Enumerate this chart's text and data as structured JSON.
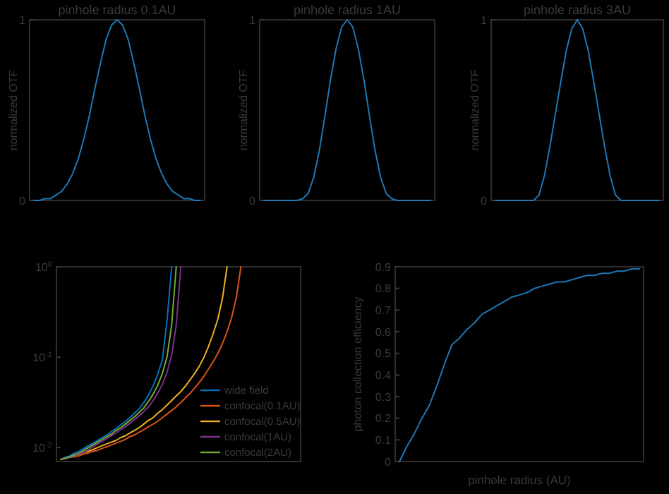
{
  "chart_data": [
    {
      "type": "line",
      "title": "pinhole radius 0.1AU",
      "ylabel": "normalized OTF",
      "tick_labels": "y",
      "ylim": [
        0,
        1
      ],
      "yticks": [
        0,
        1
      ],
      "categories": [
        null,
        null,
        null,
        null,
        null,
        null,
        null,
        null,
        null,
        null,
        null,
        null,
        null,
        null,
        null,
        null,
        null,
        null,
        null,
        null,
        null,
        null,
        null,
        null,
        null,
        null,
        null,
        null,
        null,
        null,
        null
      ],
      "series": [
        {
          "color": "#1f77b4",
          "values": [
            0,
            0,
            0.01,
            0.01,
            0.03,
            0.05,
            0.09,
            0.15,
            0.23,
            0.34,
            0.47,
            0.62,
            0.76,
            0.89,
            0.97,
            1,
            0.97,
            0.89,
            0.76,
            0.62,
            0.47,
            0.34,
            0.23,
            0.15,
            0.09,
            0.05,
            0.03,
            0.01,
            0.01,
            0,
            0
          ]
        }
      ]
    },
    {
      "type": "line",
      "title": "pinhole radius 1AU",
      "ylabel": "normalized OTF",
      "tick_labels": "y",
      "ylim": [
        0,
        1
      ],
      "yticks": [
        0,
        1
      ],
      "categories": [
        null,
        null,
        null,
        null,
        null,
        null,
        null,
        null,
        null,
        null,
        null,
        null,
        null,
        null,
        null,
        null,
        null,
        null,
        null,
        null,
        null,
        null,
        null,
        null,
        null,
        null,
        null,
        null,
        null,
        null,
        null
      ],
      "series": [
        {
          "color": "#1f77b4",
          "values": [
            0,
            0,
            0,
            0,
            0,
            0,
            0,
            0.01,
            0.04,
            0.13,
            0.28,
            0.47,
            0.67,
            0.84,
            0.96,
            1,
            0.96,
            0.84,
            0.67,
            0.47,
            0.28,
            0.13,
            0.04,
            0.01,
            0,
            0,
            0,
            0,
            0,
            0,
            0
          ]
        }
      ]
    },
    {
      "type": "line",
      "title": "pinhole radius 3AU",
      "ylabel": "normalized OTF",
      "tick_labels": "y",
      "ylim": [
        0,
        1
      ],
      "yticks": [
        0,
        1
      ],
      "categories": [
        null,
        null,
        null,
        null,
        null,
        null,
        null,
        null,
        null,
        null,
        null,
        null,
        null,
        null,
        null,
        null,
        null,
        null,
        null,
        null,
        null,
        null,
        null,
        null,
        null,
        null,
        null,
        null,
        null,
        null,
        null
      ],
      "series": [
        {
          "color": "#1f77b4",
          "values": [
            0,
            0,
            0,
            0,
            0,
            0,
            0,
            0,
            0.03,
            0.14,
            0.3,
            0.48,
            0.66,
            0.83,
            0.95,
            1,
            0.95,
            0.83,
            0.66,
            0.48,
            0.3,
            0.14,
            0.03,
            0,
            0,
            0,
            0,
            0,
            0,
            0,
            0
          ]
        }
      ]
    },
    {
      "type": "line",
      "log": "y",
      "tick_labels": "y",
      "ylim": [
        0.007,
        1
      ],
      "yticks": [
        {
          "value": 0.01,
          "label": "10$^{-2}$"
        },
        {
          "value": 0.1,
          "label": "10$^{-1}$"
        },
        {
          "value": 1,
          "label": "10$^{0}$"
        }
      ],
      "legend": "bottom right",
      "categories": [
        null,
        null,
        null,
        null,
        null,
        null,
        null,
        null,
        null,
        null,
        null,
        null,
        null,
        null,
        null,
        null,
        null,
        null,
        null,
        null,
        null,
        null,
        null,
        null,
        null,
        null,
        null,
        null,
        null,
        null,
        null,
        null,
        null,
        null,
        null,
        null,
        null,
        null,
        null,
        null,
        null,
        null,
        null,
        null,
        null,
        null,
        null,
        null,
        null,
        null,
        null,
        null
      ],
      "series": [
        {
          "name": "wide field",
          "color": "#0072bd",
          "values": [
            0.0074,
            0.0078,
            0.0081,
            0.0087,
            0.0091,
            0.0098,
            0.0105,
            0.0112,
            0.012,
            0.0129,
            0.0138,
            0.0151,
            0.0162,
            0.0178,
            0.0195,
            0.0214,
            0.024,
            0.0269,
            0.0316,
            0.038,
            0.048,
            0.065,
            0.093,
            0.25,
            1,
            null,
            null,
            null,
            null,
            null,
            null,
            null,
            null,
            null,
            null,
            null,
            null,
            null,
            null,
            null,
            null,
            null,
            null,
            null,
            null,
            null,
            null,
            null,
            null,
            null,
            null,
            null
          ]
        },
        {
          "name": "confocal(0.1AU)",
          "color": "#d95319",
          "values": [
            0.0074,
            0.0076,
            0.0078,
            0.0079,
            0.0081,
            0.0085,
            0.0087,
            0.0091,
            0.0093,
            0.0098,
            0.0102,
            0.0107,
            0.0112,
            0.0117,
            0.0123,
            0.0132,
            0.0138,
            0.0148,
            0.0158,
            0.017,
            0.0182,
            0.0195,
            0.0214,
            0.0234,
            0.0257,
            0.0282,
            0.0316,
            0.0355,
            0.0398,
            0.0457,
            0.0525,
            0.0617,
            0.0741,
            0.0891,
            0.11,
            0.141,
            0.191,
            0.275,
            0.457,
            1,
            null,
            null,
            null,
            null,
            null,
            null,
            null,
            null,
            null,
            null,
            null,
            null
          ]
        },
        {
          "name": "confocal(0.5AU)",
          "color": "#edb120",
          "values": [
            null,
            null,
            null,
            0.0081,
            0.0085,
            0.0089,
            0.0091,
            0.0095,
            0.01,
            0.0105,
            0.011,
            0.0115,
            0.012,
            0.0129,
            0.0135,
            0.0145,
            0.0155,
            0.0166,
            0.0182,
            0.02,
            0.0214,
            0.024,
            0.0263,
            0.0295,
            0.0331,
            0.0372,
            0.0417,
            0.0479,
            0.0562,
            0.0661,
            0.0794,
            0.1,
            0.132,
            0.182,
            0.263,
            0.447,
            1,
            null,
            null,
            null,
            null,
            null,
            null,
            null,
            null,
            null,
            null,
            null,
            null,
            null,
            null,
            null
          ]
        },
        {
          "name": "confocal(1AU)",
          "color": "#7e2f8e",
          "values": [
            0.0074,
            0.0076,
            0.0078,
            0.0081,
            0.0085,
            0.0089,
            0.0095,
            0.0102,
            0.011,
            0.0117,
            0.0126,
            0.0135,
            0.0145,
            0.0158,
            0.017,
            0.0186,
            0.0204,
            0.0224,
            0.0251,
            0.0282,
            0.0331,
            0.0398,
            0.05,
            0.068,
            0.105,
            0.224,
            1,
            null,
            null,
            null,
            null,
            null,
            null,
            null,
            null,
            null,
            null,
            null,
            null,
            null,
            null,
            null,
            null,
            null,
            null,
            null,
            null,
            null,
            null,
            null,
            null,
            null
          ]
        },
        {
          "name": "confocal(2AU)",
          "color": "#77ac30",
          "values": [
            0.0074,
            0.0076,
            0.0079,
            0.0083,
            0.0087,
            0.0093,
            0.01,
            0.0107,
            0.0115,
            0.0123,
            0.0132,
            0.0141,
            0.0155,
            0.0166,
            0.0182,
            0.02,
            0.0219,
            0.0245,
            0.0275,
            0.0324,
            0.0389,
            0.049,
            0.066,
            0.1,
            0.224,
            1,
            null,
            null,
            null,
            null,
            null,
            null,
            null,
            null,
            null,
            null,
            null,
            null,
            null,
            null,
            null,
            null,
            null,
            null,
            null,
            null,
            null,
            null,
            null,
            null,
            null,
            null
          ]
        }
      ]
    },
    {
      "type": "line",
      "xlabel": "pinhole radius (AU)",
      "ylabel": "photon collection efficiency",
      "tick_labels": "y",
      "ylim": [
        0,
        0.9
      ],
      "yticks": [
        0,
        0.1,
        0.2,
        0.3,
        0.4,
        0.5,
        0.6,
        0.7,
        0.8,
        0.9
      ],
      "categories": [
        null,
        null,
        null,
        null,
        null,
        null,
        null,
        null,
        null,
        null,
        null,
        null,
        null,
        null,
        null,
        null,
        null,
        null,
        null,
        null,
        null,
        null,
        null,
        null,
        null,
        null,
        null,
        null,
        null,
        null,
        null,
        null,
        null
      ],
      "series": [
        {
          "color": "#1f77b4",
          "values": [
            0,
            0.07,
            0.13,
            0.2,
            0.26,
            0.35,
            0.45,
            0.54,
            0.57,
            0.61,
            0.64,
            0.68,
            0.7,
            0.72,
            0.74,
            0.76,
            0.77,
            0.78,
            0.8,
            0.81,
            0.82,
            0.83,
            0.83,
            0.84,
            0.85,
            0.86,
            0.86,
            0.87,
            0.87,
            0.88,
            0.88,
            0.89,
            0.89
          ]
        }
      ]
    }
  ]
}
